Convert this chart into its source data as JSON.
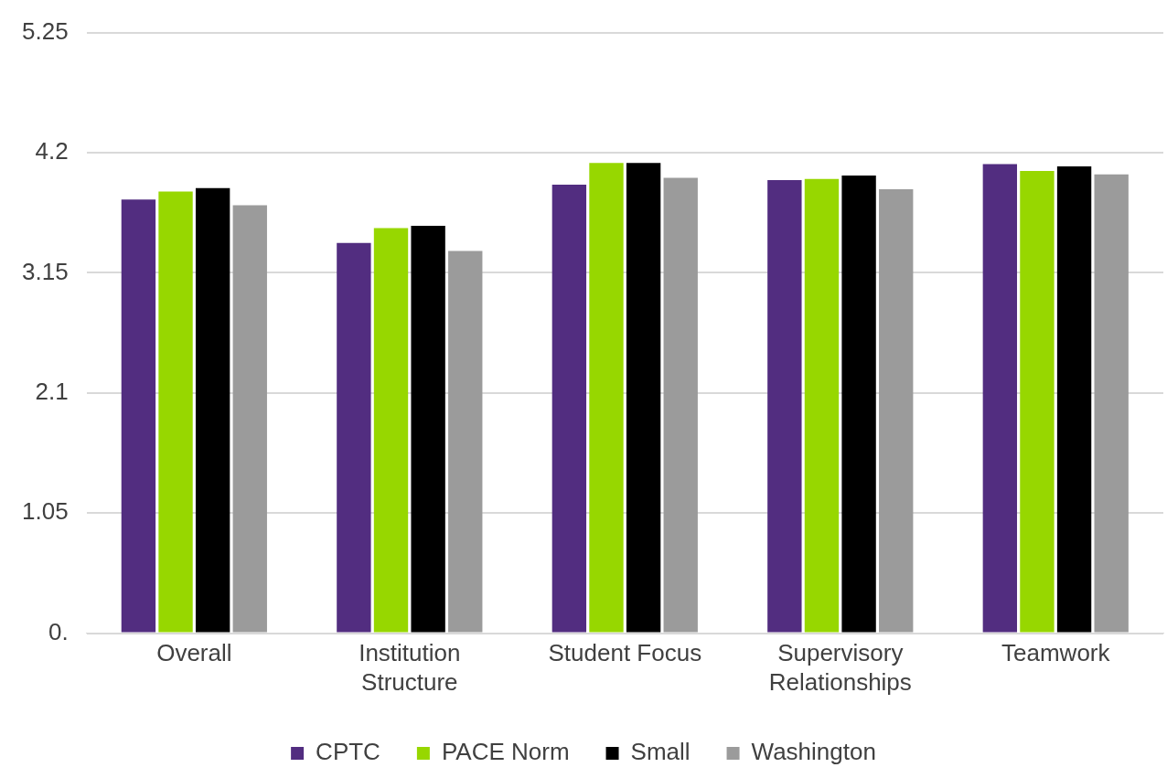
{
  "chart_data": {
    "type": "bar",
    "categories": [
      "Overall",
      "Institution Structure",
      "Student Focus",
      "Supervisory Relationships",
      "Teamwork"
    ],
    "series": [
      {
        "name": "CPTC",
        "color": "#522d80",
        "values": [
          3.79,
          3.41,
          3.92,
          3.96,
          4.1
        ]
      },
      {
        "name": "PACE Norm",
        "color": "#97d700",
        "values": [
          3.86,
          3.54,
          4.11,
          3.97,
          4.04
        ]
      },
      {
        "name": "Small",
        "color": "#000000",
        "values": [
          3.89,
          3.56,
          4.11,
          4.0,
          4.08
        ]
      },
      {
        "name": "Washington",
        "color": "#9b9b9b",
        "values": [
          3.74,
          3.34,
          3.98,
          3.88,
          4.01
        ]
      }
    ],
    "ylim": [
      0,
      5.25
    ],
    "yticks": [
      {
        "value": 0,
        "label": "0."
      },
      1.05,
      2.1,
      3.15,
      4.2,
      5.25
    ],
    "grid": "y",
    "legend": "bottom"
  }
}
